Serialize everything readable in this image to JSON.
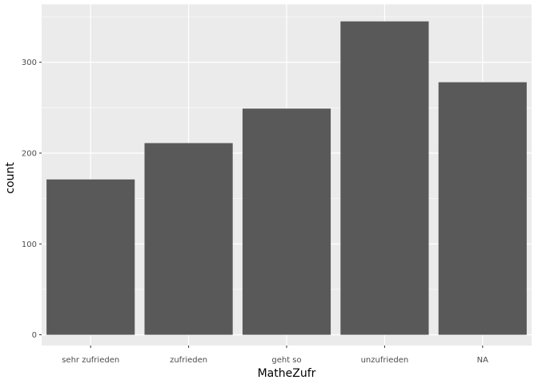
{
  "chart_data": {
    "type": "bar",
    "categories": [
      "sehr zufrieden",
      "zufrieden",
      "geht so",
      "unzufrieden",
      "NA"
    ],
    "values": [
      171,
      211,
      249,
      345,
      278
    ],
    "title": "",
    "xlabel": "MatheZufr",
    "ylabel": "count",
    "ylim": [
      0,
      362
    ],
    "yticks": [
      0,
      100,
      200,
      300
    ],
    "grid": true,
    "colors": {
      "bar": "#595959",
      "panel": "#ebebeb",
      "grid": "#ffffff"
    }
  }
}
